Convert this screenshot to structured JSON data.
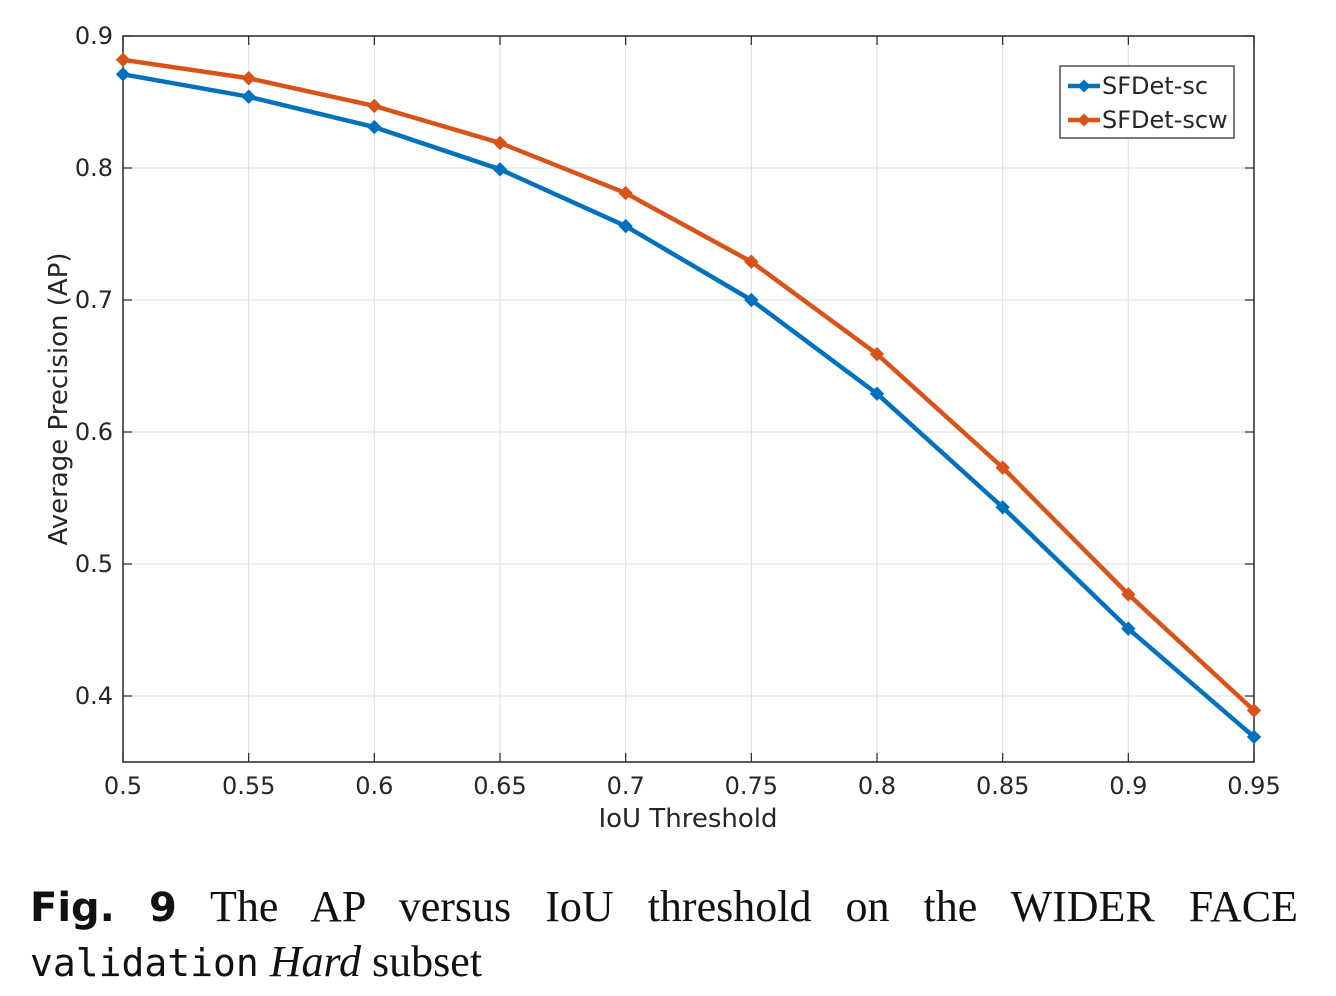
{
  "chart_data": {
    "type": "line",
    "title": "",
    "xlabel": "IoU Threshold",
    "ylabel": "Average Precision (AP)",
    "x": [
      0.5,
      0.55,
      0.6,
      0.65,
      0.7,
      0.75,
      0.8,
      0.85,
      0.9,
      0.95
    ],
    "x_tick_labels": [
      "0.5",
      "0.55",
      "0.6",
      "0.65",
      "0.7",
      "0.75",
      "0.8",
      "0.85",
      "0.9",
      "0.95"
    ],
    "y_tick_labels": [
      "0.4",
      "0.5",
      "0.6",
      "0.7",
      "0.8",
      "0.9"
    ],
    "y_ticks": [
      0.4,
      0.5,
      0.6,
      0.7,
      0.8,
      0.9
    ],
    "xlim": [
      0.5,
      0.95
    ],
    "ylim": [
      0.35,
      0.9
    ],
    "grid": true,
    "legend_position": "top-right",
    "series": [
      {
        "name": "SFDet-sc",
        "color": "#0072BD",
        "marker": "diamond",
        "values": [
          0.871,
          0.854,
          0.831,
          0.799,
          0.756,
          0.7,
          0.629,
          0.543,
          0.451,
          0.369
        ]
      },
      {
        "name": "SFDet-scw",
        "color": "#D95319",
        "marker": "diamond",
        "values": [
          0.882,
          0.868,
          0.847,
          0.819,
          0.781,
          0.729,
          0.659,
          0.573,
          0.477,
          0.389
        ]
      }
    ]
  },
  "caption": {
    "label": "Fig.",
    "number": "9",
    "text_before": "The AP versus IoU threshold on the WIDER FACE",
    "mono_word": "validation",
    "italic_word": "Hard",
    "text_after": "subset"
  }
}
